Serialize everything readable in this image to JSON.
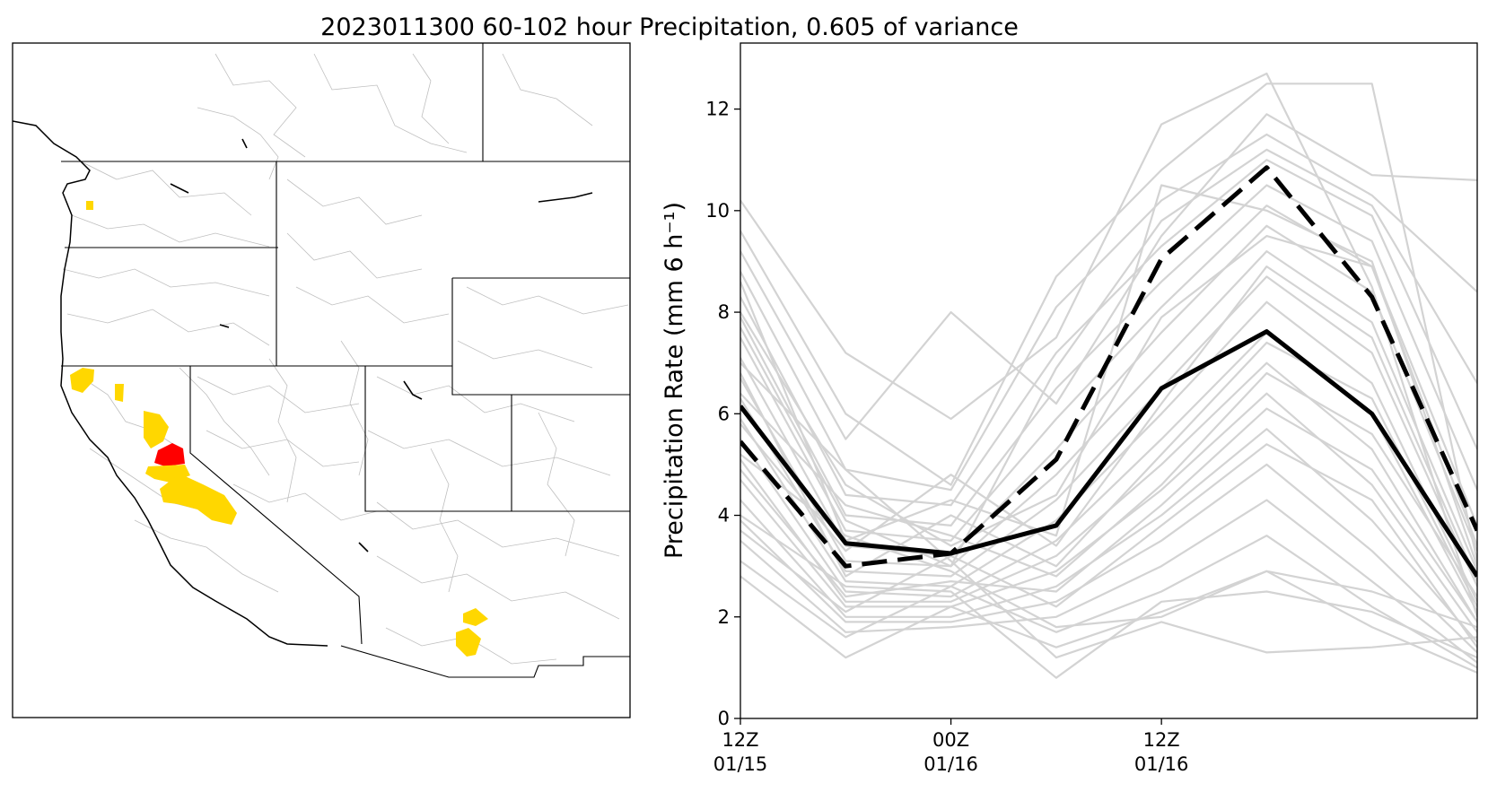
{
  "title": "2023011300 60-102 hour Precipitation, 0.605 of variance",
  "colors": {
    "highlight_yellow": "#FFD700",
    "highlight_red": "#FF0000",
    "ensemble_gray": "#D3D3D3",
    "boundary": "#000000",
    "basin_outline": "#BFBFBF"
  },
  "map": {
    "description_icon": "map-of-western-united-states-with-hydrologic-basins"
  },
  "chart_data": {
    "type": "line",
    "title": "2023011300 60-102 hour Precipitation, 0.605 of variance",
    "ylabel": "Precipitation Rate (mm 6 h⁻¹)",
    "xlabel": "",
    "ylim": [
      0,
      13.3
    ],
    "yticks": [
      0,
      2,
      4,
      6,
      8,
      10,
      12
    ],
    "xlim": [
      0,
      7
    ],
    "xticks": [
      {
        "x": 0,
        "line1": "12Z",
        "line2": "01/15"
      },
      {
        "x": 2,
        "line1": "00Z",
        "line2": "01/16"
      },
      {
        "x": 4,
        "line1": "12Z",
        "line2": "01/16"
      }
    ],
    "x": [
      0,
      1,
      2,
      3,
      4,
      5,
      6,
      7
    ],
    "highlighted_series": [
      {
        "style": "solid",
        "color": "#000000",
        "values": [
          6.15,
          3.45,
          3.25,
          3.8,
          6.5,
          7.62,
          6.0,
          2.8
        ]
      },
      {
        "style": "dashed",
        "color": "#000000",
        "values": [
          5.45,
          3.0,
          3.25,
          5.1,
          9.05,
          10.85,
          8.3,
          3.7
        ]
      }
    ],
    "ensemble_series": [
      {
        "values": [
          10.2,
          7.2,
          5.9,
          7.5,
          11.7,
          12.7,
          8.5,
          2.0
        ]
      },
      {
        "values": [
          9.6,
          6.0,
          4.6,
          8.7,
          10.8,
          12.5,
          12.5,
          3.1
        ]
      },
      {
        "values": [
          9.2,
          5.5,
          8.0,
          6.2,
          9.5,
          11.9,
          10.7,
          10.6
        ]
      },
      {
        "values": [
          8.8,
          4.9,
          4.5,
          8.1,
          10.2,
          11.5,
          10.3,
          8.4
        ]
      },
      {
        "values": [
          8.3,
          4.4,
          4.2,
          7.2,
          9.3,
          11.0,
          9.9,
          5.3
        ]
      },
      {
        "values": [
          7.9,
          4.0,
          3.8,
          6.5,
          8.6,
          10.5,
          9.4,
          4.5
        ]
      },
      {
        "values": [
          7.5,
          3.7,
          3.5,
          5.9,
          8.1,
          10.1,
          8.9,
          3.8
        ]
      },
      {
        "values": [
          7.1,
          3.4,
          3.2,
          5.3,
          7.6,
          9.7,
          8.4,
          3.3
        ]
      },
      {
        "values": [
          6.7,
          3.1,
          3.0,
          4.8,
          7.0,
          9.2,
          7.8,
          2.9
        ]
      },
      {
        "values": [
          6.3,
          2.9,
          2.8,
          4.3,
          6.5,
          8.7,
          7.2,
          2.6
        ]
      },
      {
        "values": [
          5.9,
          2.7,
          2.6,
          3.9,
          6.0,
          8.2,
          6.6,
          2.3
        ]
      },
      {
        "values": [
          5.5,
          2.5,
          2.4,
          3.5,
          5.5,
          7.6,
          6.0,
          2.1
        ]
      },
      {
        "values": [
          5.1,
          2.3,
          2.3,
          3.2,
          5.0,
          7.0,
          5.3,
          1.9
        ]
      },
      {
        "values": [
          4.7,
          2.2,
          2.2,
          2.9,
          4.5,
          6.4,
          4.6,
          1.7
        ]
      },
      {
        "values": [
          4.3,
          2.0,
          2.0,
          2.6,
          4.0,
          5.7,
          3.9,
          1.5
        ]
      },
      {
        "values": [
          3.9,
          1.9,
          1.9,
          2.3,
          3.5,
          5.0,
          3.3,
          1.3
        ]
      },
      {
        "values": [
          3.5,
          1.7,
          1.8,
          2.0,
          3.0,
          4.3,
          2.7,
          1.1
        ]
      },
      {
        "values": [
          3.1,
          1.6,
          2.6,
          1.7,
          2.5,
          3.6,
          2.2,
          1.0
        ]
      },
      {
        "values": [
          2.8,
          1.2,
          2.2,
          1.4,
          2.1,
          2.9,
          1.8,
          0.9
        ]
      },
      {
        "values": [
          4.0,
          2.6,
          2.5,
          0.8,
          2.3,
          2.5,
          2.1,
          1.2
        ]
      },
      {
        "values": [
          7.0,
          4.9,
          3.1,
          1.2,
          1.9,
          1.3,
          1.4,
          1.6
        ]
      },
      {
        "values": [
          5.2,
          3.6,
          2.9,
          1.8,
          2.0,
          2.9,
          2.5,
          1.8
        ]
      },
      {
        "values": [
          6.4,
          4.2,
          3.6,
          2.8,
          4.6,
          6.8,
          5.6,
          2.4
        ]
      },
      {
        "values": [
          5.8,
          3.3,
          4.8,
          3.4,
          6.2,
          8.9,
          7.5,
          2.7
        ]
      },
      {
        "values": [
          8.0,
          4.6,
          3.4,
          4.4,
          7.9,
          9.5,
          8.9,
          3.4
        ]
      },
      {
        "values": [
          6.8,
          2.8,
          4.0,
          3.0,
          5.2,
          7.4,
          6.3,
          2.2
        ]
      },
      {
        "values": [
          4.9,
          2.4,
          2.7,
          2.5,
          4.2,
          6.1,
          4.9,
          1.9
        ]
      },
      {
        "values": [
          3.7,
          2.1,
          3.2,
          2.2,
          3.8,
          5.4,
          4.3,
          1.4
        ]
      },
      {
        "values": [
          7.7,
          3.9,
          3.0,
          6.9,
          9.8,
          11.2,
          10.1,
          6.6
        ]
      },
      {
        "values": [
          8.6,
          3.5,
          4.3,
          3.6,
          10.5,
          10.0,
          9.0,
          3.0
        ]
      }
    ]
  }
}
